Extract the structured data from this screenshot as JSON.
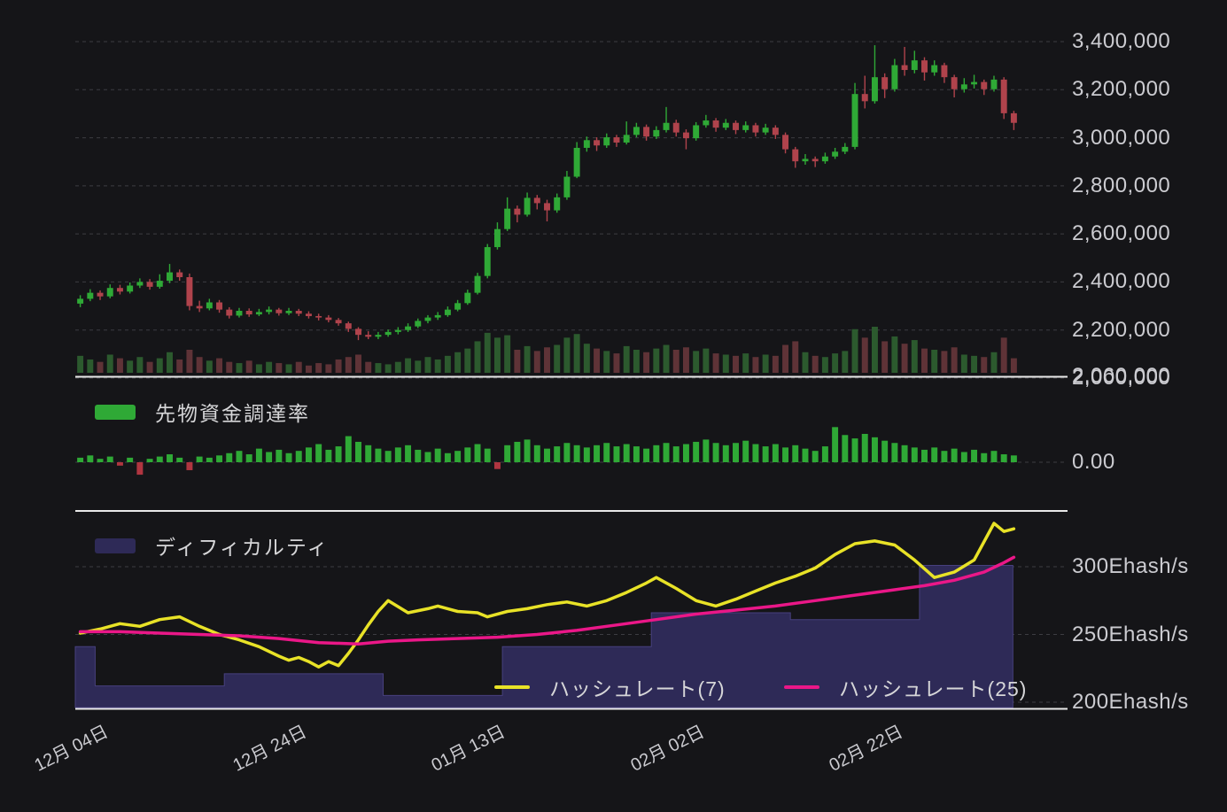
{
  "chart_data": {
    "type": "candlestick",
    "colors": {
      "background": "#151518",
      "grid": "#3d3d42",
      "divider": "#e9e9e9",
      "axis_text": "#cbcbd0",
      "candle_up": "#2fa936",
      "candle_down": "#b0434c",
      "volume_up": "#2c5a2e",
      "volume_down": "#5f3337",
      "funding_up": "#2fa936",
      "funding_down": "#b03540",
      "difficulty_fill": "#2e2a57",
      "difficulty_stroke": "#47407e",
      "hashrate7": "#e8e227",
      "hashrate25": "#ea1788"
    },
    "price_panel": {
      "y_ticks": [
        3400000,
        3200000,
        3000000,
        2800000,
        2600000,
        2400000,
        2200000,
        2000000
      ],
      "y_tick_labels": [
        "3,400,000",
        "3,200,000",
        "3,000,000",
        "2,800,000",
        "2,600,000",
        "2,400,000",
        "2,200,000",
        "2,000,000"
      ],
      "overlay_label": "2,060,000",
      "axis_range": [
        2000000,
        3400000
      ],
      "candles": [
        [
          2310000,
          2345000,
          2295000,
          2330000
        ],
        [
          2330000,
          2370000,
          2320000,
          2355000
        ],
        [
          2355000,
          2365000,
          2325000,
          2340000
        ],
        [
          2340000,
          2390000,
          2332000,
          2375000
        ],
        [
          2375000,
          2388000,
          2348000,
          2360000
        ],
        [
          2360000,
          2398000,
          2352000,
          2385000
        ],
        [
          2385000,
          2415000,
          2375000,
          2400000
        ],
        [
          2400000,
          2412000,
          2368000,
          2380000
        ],
        [
          2380000,
          2432000,
          2372000,
          2405000
        ],
        [
          2405000,
          2475000,
          2395000,
          2440000
        ],
        [
          2440000,
          2452000,
          2405000,
          2420000
        ],
        [
          2420000,
          2435000,
          2282000,
          2300000
        ],
        [
          2300000,
          2322000,
          2275000,
          2290000
        ],
        [
          2290000,
          2330000,
          2282000,
          2315000
        ],
        [
          2315000,
          2325000,
          2272000,
          2285000
        ],
        [
          2285000,
          2295000,
          2248000,
          2260000
        ],
        [
          2260000,
          2292000,
          2252000,
          2280000
        ],
        [
          2280000,
          2290000,
          2255000,
          2265000
        ],
        [
          2265000,
          2288000,
          2258000,
          2275000
        ],
        [
          2275000,
          2298000,
          2265000,
          2285000
        ],
        [
          2285000,
          2292000,
          2260000,
          2270000
        ],
        [
          2270000,
          2292000,
          2262000,
          2280000
        ],
        [
          2280000,
          2288000,
          2258000,
          2268000
        ],
        [
          2268000,
          2278000,
          2248000,
          2258000
        ],
        [
          2258000,
          2268000,
          2240000,
          2252000
        ],
        [
          2252000,
          2262000,
          2232000,
          2242000
        ],
        [
          2242000,
          2250000,
          2218000,
          2228000
        ],
        [
          2228000,
          2235000,
          2192000,
          2205000
        ],
        [
          2205000,
          2212000,
          2158000,
          2180000
        ],
        [
          2180000,
          2195000,
          2162000,
          2172000
        ],
        [
          2172000,
          2192000,
          2162000,
          2180000
        ],
        [
          2180000,
          2202000,
          2172000,
          2192000
        ],
        [
          2192000,
          2212000,
          2182000,
          2200000
        ],
        [
          2200000,
          2228000,
          2192000,
          2215000
        ],
        [
          2215000,
          2248000,
          2208000,
          2238000
        ],
        [
          2238000,
          2262000,
          2228000,
          2252000
        ],
        [
          2252000,
          2275000,
          2242000,
          2262000
        ],
        [
          2262000,
          2298000,
          2255000,
          2285000
        ],
        [
          2285000,
          2325000,
          2278000,
          2312000
        ],
        [
          2312000,
          2368000,
          2305000,
          2355000
        ],
        [
          2355000,
          2438000,
          2348000,
          2425000
        ],
        [
          2425000,
          2558000,
          2415000,
          2545000
        ],
        [
          2545000,
          2648000,
          2535000,
          2620000
        ],
        [
          2620000,
          2752000,
          2612000,
          2705000
        ],
        [
          2705000,
          2718000,
          2648000,
          2680000
        ],
        [
          2680000,
          2772000,
          2672000,
          2750000
        ],
        [
          2750000,
          2762000,
          2702000,
          2728000
        ],
        [
          2728000,
          2742000,
          2652000,
          2698000
        ],
        [
          2698000,
          2768000,
          2688000,
          2752000
        ],
        [
          2752000,
          2862000,
          2742000,
          2838000
        ],
        [
          2838000,
          2982000,
          2832000,
          2958000
        ],
        [
          2958000,
          3005000,
          2942000,
          2990000
        ],
        [
          2990000,
          3002000,
          2945000,
          2968000
        ],
        [
          2968000,
          3018000,
          2958000,
          3002000
        ],
        [
          3002000,
          3012000,
          2962000,
          2980000
        ],
        [
          2980000,
          3068000,
          2972000,
          3012000
        ],
        [
          3012000,
          3062000,
          3002000,
          3045000
        ],
        [
          3045000,
          3055000,
          2988000,
          3005000
        ],
        [
          3005000,
          3048000,
          2995000,
          3032000
        ],
        [
          3032000,
          3128000,
          3022000,
          3062000
        ],
        [
          3062000,
          3075000,
          3005000,
          3022000
        ],
        [
          3022000,
          3035000,
          2952000,
          2998000
        ],
        [
          2998000,
          3065000,
          2988000,
          3052000
        ],
        [
          3052000,
          3095000,
          3042000,
          3072000
        ],
        [
          3072000,
          3082000,
          3025000,
          3042000
        ],
        [
          3042000,
          3078000,
          3032000,
          3062000
        ],
        [
          3062000,
          3072000,
          3015000,
          3032000
        ],
        [
          3032000,
          3068000,
          3022000,
          3052000
        ],
        [
          3052000,
          3062000,
          3005000,
          3022000
        ],
        [
          3022000,
          3058000,
          3012000,
          3042000
        ],
        [
          3042000,
          3052000,
          2995000,
          3012000
        ],
        [
          3012000,
          3022000,
          2935000,
          2952000
        ],
        [
          2952000,
          2962000,
          2875000,
          2902000
        ],
        [
          2902000,
          2932000,
          2888000,
          2912000
        ],
        [
          2912000,
          2922000,
          2878000,
          2902000
        ],
        [
          2902000,
          2938000,
          2892000,
          2922000
        ],
        [
          2922000,
          2958000,
          2912000,
          2942000
        ],
        [
          2942000,
          2978000,
          2932000,
          2962000
        ],
        [
          2962000,
          3228000,
          2952000,
          3182000
        ],
        [
          3182000,
          3258000,
          3122000,
          3152000
        ],
        [
          3152000,
          3385000,
          3142000,
          3252000
        ],
        [
          3252000,
          3268000,
          3165000,
          3202000
        ],
        [
          3202000,
          3328000,
          3192000,
          3302000
        ],
        [
          3302000,
          3378000,
          3258000,
          3282000
        ],
        [
          3282000,
          3362000,
          3268000,
          3322000
        ],
        [
          3322000,
          3335000,
          3238000,
          3272000
        ],
        [
          3272000,
          3322000,
          3258000,
          3302000
        ],
        [
          3302000,
          3312000,
          3228000,
          3252000
        ],
        [
          3252000,
          3262000,
          3168000,
          3202000
        ],
        [
          3202000,
          3248000,
          3188000,
          3222000
        ],
        [
          3222000,
          3262000,
          3205000,
          3232000
        ],
        [
          3232000,
          3242000,
          3178000,
          3202000
        ],
        [
          3202000,
          3258000,
          3192000,
          3242000
        ],
        [
          3242000,
          3252000,
          3078000,
          3102000
        ],
        [
          3102000,
          3112000,
          3032000,
          3062000
        ]
      ],
      "volumes": [
        28,
        22,
        18,
        30,
        24,
        20,
        26,
        18,
        24,
        34,
        22,
        38,
        26,
        20,
        24,
        18,
        16,
        20,
        14,
        18,
        16,
        14,
        18,
        12,
        16,
        14,
        22,
        26,
        30,
        18,
        16,
        14,
        18,
        24,
        20,
        26,
        22,
        28,
        34,
        40,
        52,
        66,
        58,
        62,
        38,
        44,
        36,
        42,
        46,
        58,
        64,
        48,
        40,
        36,
        32,
        44,
        38,
        34,
        40,
        46,
        38,
        42,
        36,
        40,
        32,
        30,
        28,
        32,
        26,
        30,
        28,
        46,
        52,
        34,
        28,
        26,
        32,
        36,
        72,
        58,
        76,
        52,
        60,
        48,
        54,
        40,
        38,
        36,
        42,
        30,
        28,
        26,
        34,
        58,
        24
      ]
    },
    "funding_panel": {
      "legend": "先物資金調達率",
      "zero_label": "0.00",
      "values": [
        0.008,
        0.012,
        0.006,
        0.01,
        -0.006,
        0.008,
        -0.022,
        0.006,
        0.01,
        0.014,
        0.008,
        -0.014,
        0.01,
        0.008,
        0.012,
        0.016,
        0.02,
        0.014,
        0.024,
        0.018,
        0.022,
        0.016,
        0.02,
        0.026,
        0.032,
        0.022,
        0.028,
        0.046,
        0.036,
        0.03,
        0.024,
        0.02,
        0.026,
        0.03,
        0.022,
        0.018,
        0.024,
        0.016,
        0.02,
        0.026,
        0.032,
        0.024,
        -0.012,
        0.03,
        0.036,
        0.04,
        0.03,
        0.024,
        0.028,
        0.034,
        0.03,
        0.026,
        0.03,
        0.034,
        0.028,
        0.032,
        0.028,
        0.024,
        0.03,
        0.034,
        0.028,
        0.032,
        0.036,
        0.04,
        0.034,
        0.03,
        0.034,
        0.038,
        0.032,
        0.028,
        0.032,
        0.026,
        0.03,
        0.024,
        0.02,
        0.028,
        0.062,
        0.048,
        0.042,
        0.05,
        0.044,
        0.038,
        0.034,
        0.03,
        0.026,
        0.022,
        0.026,
        0.02,
        0.024,
        0.018,
        0.022,
        0.016,
        0.02,
        0.014,
        0.012
      ]
    },
    "bottom_panel": {
      "difficulty_legend": "ディフィカルティ",
      "hashrate7_legend": "ハッシュレート(7)",
      "hashrate25_legend": "ハッシュレート(25)",
      "y_ticks": [
        300,
        250,
        200
      ],
      "y_tick_labels": [
        "300Ehash/s",
        "250Ehash/s",
        "200Ehash/s"
      ],
      "unit": "Ehash/s",
      "difficulty_steps": [
        [
          0,
          241
        ],
        [
          2,
          212
        ],
        [
          15,
          221
        ],
        [
          31,
          205
        ],
        [
          43,
          241
        ],
        [
          58,
          266
        ],
        [
          72,
          261
        ],
        [
          85,
          301
        ]
      ],
      "hashrate7_points": [
        [
          0,
          251
        ],
        [
          2,
          254
        ],
        [
          4,
          258
        ],
        [
          6,
          256
        ],
        [
          8,
          261
        ],
        [
          10,
          263
        ],
        [
          12,
          256
        ],
        [
          14,
          250
        ],
        [
          16,
          246
        ],
        [
          18,
          241
        ],
        [
          20,
          234
        ],
        [
          21,
          231
        ],
        [
          22,
          233
        ],
        [
          23,
          230
        ],
        [
          24,
          226
        ],
        [
          25,
          230
        ],
        [
          26,
          227
        ],
        [
          27,
          236
        ],
        [
          28,
          246
        ],
        [
          29,
          257
        ],
        [
          30,
          267
        ],
        [
          31,
          275
        ],
        [
          33,
          266
        ],
        [
          35,
          269
        ],
        [
          36,
          271
        ],
        [
          38,
          267
        ],
        [
          40,
          266
        ],
        [
          41,
          263
        ],
        [
          43,
          267
        ],
        [
          45,
          269
        ],
        [
          47,
          272
        ],
        [
          49,
          274
        ],
        [
          51,
          271
        ],
        [
          53,
          275
        ],
        [
          55,
          281
        ],
        [
          57,
          288
        ],
        [
          58,
          292
        ],
        [
          60,
          284
        ],
        [
          62,
          275
        ],
        [
          64,
          271
        ],
        [
          66,
          276
        ],
        [
          68,
          282
        ],
        [
          70,
          288
        ],
        [
          72,
          293
        ],
        [
          74,
          299
        ],
        [
          76,
          309
        ],
        [
          78,
          317
        ],
        [
          80,
          319
        ],
        [
          82,
          316
        ],
        [
          84,
          305
        ],
        [
          86,
          292
        ],
        [
          88,
          296
        ],
        [
          90,
          305
        ],
        [
          92,
          332
        ],
        [
          93,
          326
        ],
        [
          94,
          328
        ]
      ],
      "hashrate25_points": [
        [
          0,
          252
        ],
        [
          4,
          252
        ],
        [
          8,
          251
        ],
        [
          12,
          250
        ],
        [
          16,
          249
        ],
        [
          20,
          247
        ],
        [
          24,
          244
        ],
        [
          28,
          243
        ],
        [
          31,
          245
        ],
        [
          34,
          246
        ],
        [
          38,
          247
        ],
        [
          42,
          248
        ],
        [
          46,
          250
        ],
        [
          50,
          253
        ],
        [
          54,
          257
        ],
        [
          58,
          261
        ],
        [
          62,
          265
        ],
        [
          66,
          268
        ],
        [
          70,
          271
        ],
        [
          74,
          275
        ],
        [
          78,
          279
        ],
        [
          82,
          283
        ],
        [
          85,
          286
        ],
        [
          88,
          290
        ],
        [
          91,
          296
        ],
        [
          93,
          303
        ],
        [
          94,
          307
        ]
      ]
    },
    "x_axis": {
      "labels": [
        {
          "i": 2,
          "text": "12月 04日"
        },
        {
          "i": 22,
          "text": "12月 24日"
        },
        {
          "i": 42,
          "text": "01月 13日"
        },
        {
          "i": 62,
          "text": "02月 02日"
        },
        {
          "i": 82,
          "text": "02月 22日"
        }
      ]
    }
  }
}
